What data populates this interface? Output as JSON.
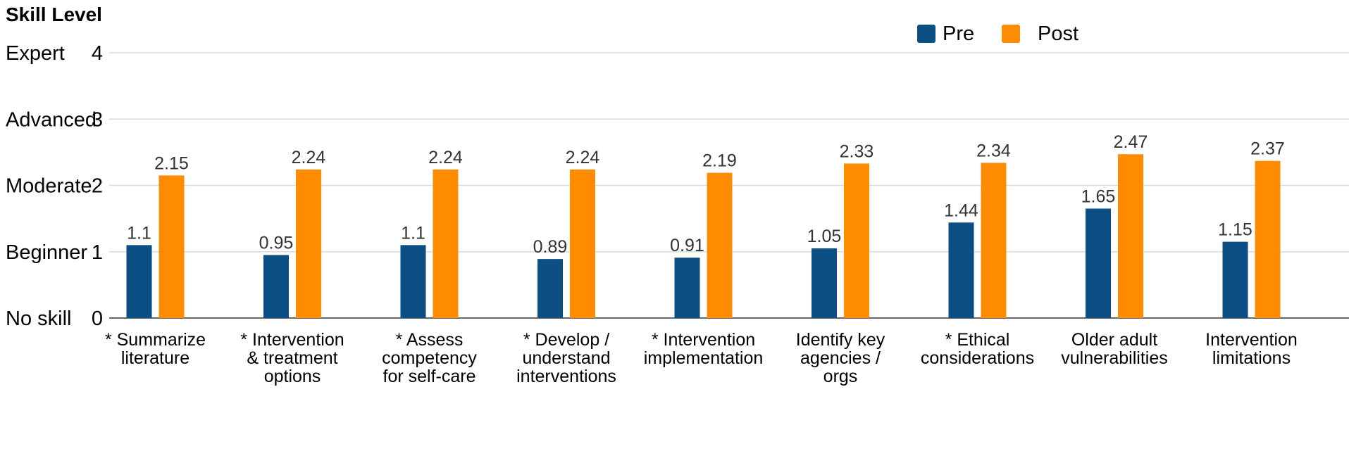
{
  "chart_data": {
    "type": "bar",
    "ylabel": "Skill Level",
    "ylim": [
      0,
      4
    ],
    "yticks": [
      0,
      1,
      2,
      3,
      4
    ],
    "ylevels": [
      "No skill",
      "Beginner",
      "Moderate",
      "Advanced",
      "Expert"
    ],
    "grid": true,
    "legend_position": "top-right",
    "categories": [
      [
        "* Summarize",
        "literature"
      ],
      [
        "* Intervention",
        "& treatment",
        "options"
      ],
      [
        "* Assess",
        "competency",
        "for self-care"
      ],
      [
        "* Develop /",
        "understand",
        "interventions"
      ],
      [
        "* Intervention",
        "implementation"
      ],
      [
        "Identify key",
        "agencies /",
        "orgs"
      ],
      [
        "* Ethical",
        "considerations"
      ],
      [
        "Older adult",
        "vulnerabilities"
      ],
      [
        "Intervention",
        "limitations"
      ]
    ],
    "series": [
      {
        "name": "Pre",
        "color": "#0b4f85",
        "values": [
          1.1,
          0.95,
          1.1,
          0.89,
          0.91,
          1.05,
          1.44,
          1.65,
          1.15
        ],
        "labels": [
          "1.1",
          "0.95",
          "1.1",
          "0.89",
          "0.91",
          "1.05",
          "1.44",
          "1.65",
          "1.15"
        ]
      },
      {
        "name": "Post",
        "color": "#ff8c00",
        "values": [
          2.15,
          2.24,
          2.24,
          2.24,
          2.19,
          2.33,
          2.34,
          2.47,
          2.37
        ],
        "labels": [
          "2.15",
          "2.24",
          "2.24",
          "2.24",
          "2.19",
          "2.33",
          "2.34",
          "2.47",
          "2.37"
        ]
      }
    ]
  }
}
